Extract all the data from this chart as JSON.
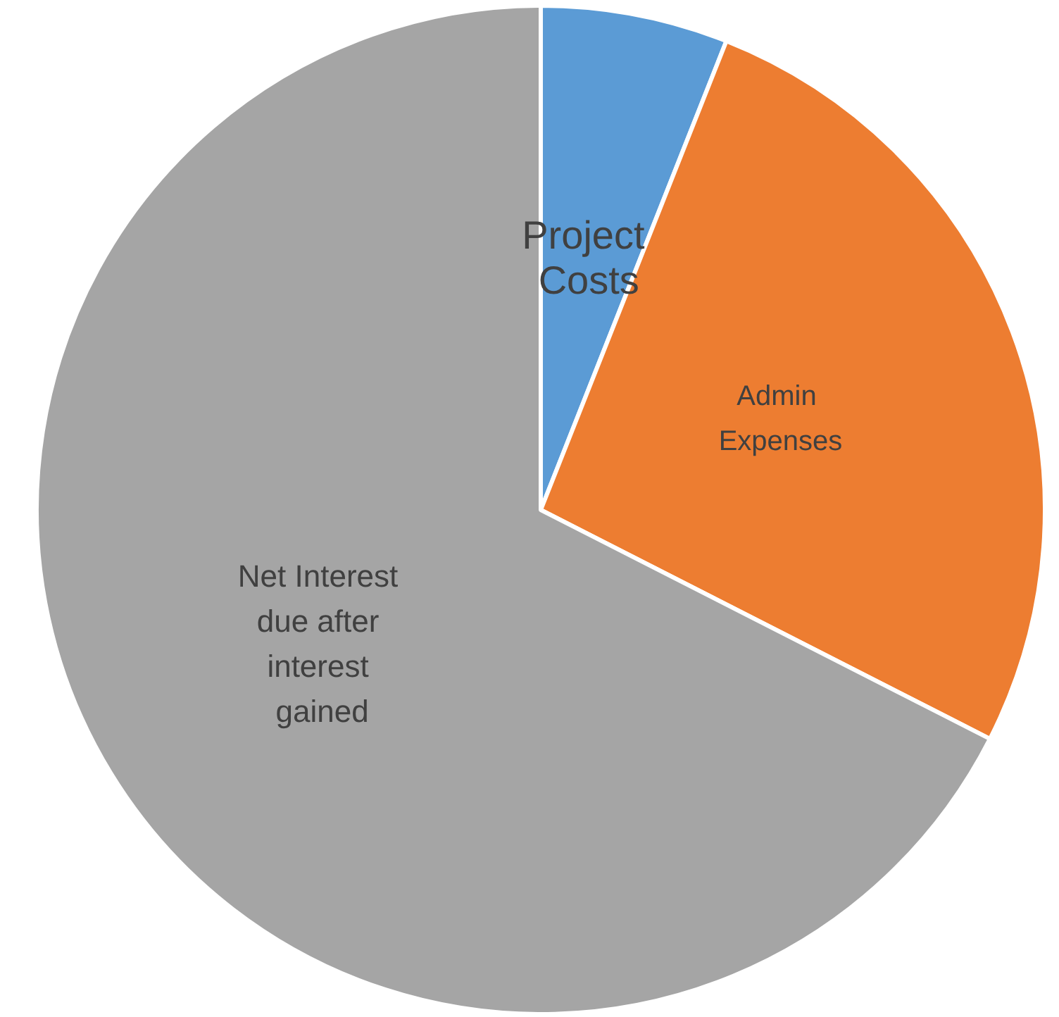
{
  "chart_data": {
    "type": "pie",
    "categories": [
      "Project Costs",
      "Admin Expenses",
      "Net Interest due after interest gained"
    ],
    "values": [
      6,
      26.5,
      67.5
    ],
    "colors": [
      "#5b9bd5",
      "#ed7d31",
      "#a5a5a5"
    ],
    "legend": false
  }
}
